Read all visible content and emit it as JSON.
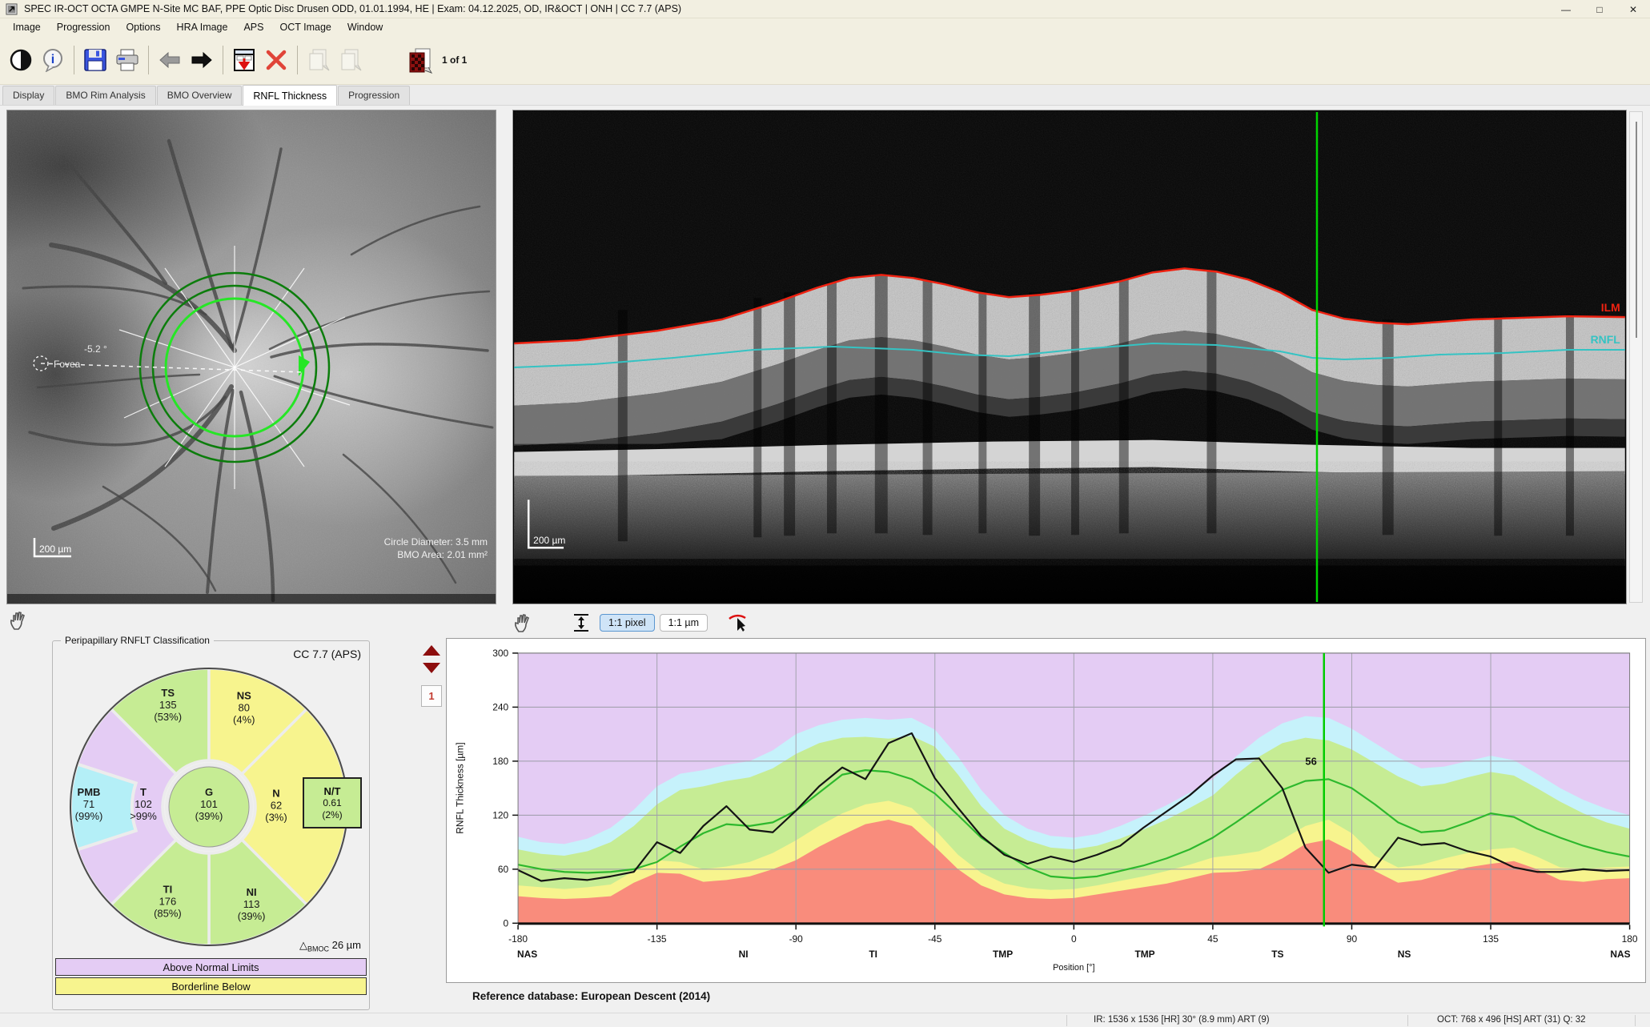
{
  "window": {
    "title": "SPEC IR-OCT OCTA GMPE N-Site MC BAF, PPE Optic Disc Drusen ODD, 01.01.1994, HE  |  Exam: 04.12.2025, OD, IR&OCT  |  ONH  |  CC 7.7 (APS)",
    "controls": {
      "minimize": "—",
      "maximize": "□",
      "close": "✕"
    }
  },
  "menu": {
    "items": [
      "Image",
      "Progression",
      "Options",
      "HRA Image",
      "APS",
      "OCT Image",
      "Window"
    ]
  },
  "toolbar": {
    "page_indicator": "1 of 1"
  },
  "tabs": [
    {
      "label": "Display"
    },
    {
      "label": "BMO Rim Analysis"
    },
    {
      "label": "BMO Overview"
    },
    {
      "label": "RNFL Thickness"
    },
    {
      "label": "Progression"
    }
  ],
  "fundus": {
    "fovea_label": "Fovea",
    "angle_label": "-5.2 °",
    "scale_label": "200 µm",
    "circle_diameter": "Circle Diameter: 3.5 mm",
    "bmo_area": "BMO Area: 2.01 mm²"
  },
  "oct": {
    "ilm_label": "ILM",
    "rnfl_label": "RNFL",
    "scale_label": "200 µm",
    "controls": {
      "pixel": "1:1 pixel",
      "micron": "1:1 µm"
    }
  },
  "page_nav": {
    "page": "1"
  },
  "classification": {
    "title": "Peripapillary RNFLT Classification",
    "badge": "CC 7.7 (APS)",
    "center": {
      "id": "G",
      "value": "101",
      "pct": "(39%)",
      "status": "normal"
    },
    "sectors": [
      {
        "id": "TS",
        "value": "135",
        "pct": "(53%)",
        "status": "normal",
        "start": 315,
        "end": 360,
        "label_ang": 337.5,
        "label_r": 134
      },
      {
        "id": "NS",
        "value": "80",
        "pct": "(4%)",
        "status": "borderline",
        "start": 0,
        "end": 45,
        "label_ang": 20,
        "label_r": 128
      },
      {
        "id": "N",
        "value": "62",
        "pct": "(3%)",
        "status": "borderline",
        "start": 45,
        "end": 135,
        "label_ang": 91,
        "label_r": 84
      },
      {
        "id": "NI",
        "value": "113",
        "pct": "(39%)",
        "status": "normal",
        "start": 135,
        "end": 180,
        "label_ang": 157,
        "label_r": 136
      },
      {
        "id": "TI",
        "value": "176",
        "pct": "(85%)",
        "status": "normal",
        "start": 180,
        "end": 225,
        "label_ang": 203,
        "label_r": 132
      },
      {
        "id": "T",
        "value": "102",
        "pct": ">99%",
        "status": "above",
        "start": 225,
        "end": 315,
        "label_ang": 270,
        "label_r": 82
      }
    ],
    "pmb": {
      "id": "PMB",
      "value": "71",
      "pct": "(99%)",
      "status": "pmb",
      "start": 252,
      "end": 288,
      "inner_r": 96,
      "label_ang": 270,
      "label_r": 150
    },
    "nt": {
      "id": "N/T",
      "value": "0.61",
      "pct": "(2%)",
      "status": "normal"
    },
    "bmoc": {
      "delta": "△",
      "label": "BMOC",
      "value": "26 µm"
    },
    "legend": [
      {
        "label": "Above Normal Limits",
        "status": "above"
      },
      {
        "label": "Borderline Below",
        "status": "borderline"
      }
    ]
  },
  "chart_data": {
    "type": "line",
    "title": "",
    "xlabel": "Position [°]",
    "ylabel": "RNFL Thickness [µm]",
    "xlim": [
      -180,
      180
    ],
    "ylim": [
      0,
      300
    ],
    "x_ticks": [
      -180,
      -135,
      -90,
      -45,
      0,
      45,
      90,
      135,
      180
    ],
    "y_ticks": [
      0,
      60,
      120,
      180,
      240,
      300
    ],
    "grid": true,
    "x_start": -180,
    "x_step": 7.5,
    "series": [
      {
        "name": "Measured RNFL thickness",
        "color": "#141414",
        "values": [
          59,
          47,
          50,
          48,
          52,
          57,
          90,
          78,
          108,
          130,
          104,
          101,
          125,
          152,
          173,
          160,
          200,
          211,
          161,
          128,
          97,
          76,
          66,
          74,
          68,
          76,
          86,
          106,
          124,
          142,
          164,
          182,
          183,
          150,
          84,
          56,
          65,
          62,
          95,
          87,
          89,
          80,
          74,
          62,
          57,
          57,
          60,
          58,
          59
        ]
      },
      {
        "name": "Mean of reference database",
        "color": "#2db82d",
        "values": [
          65,
          60,
          57,
          56,
          57,
          60,
          68,
          85,
          100,
          110,
          108,
          112,
          125,
          145,
          165,
          170,
          168,
          160,
          144,
          120,
          95,
          78,
          62,
          52,
          50,
          52,
          58,
          64,
          72,
          82,
          95,
          112,
          130,
          148,
          158,
          160,
          150,
          132,
          112,
          101,
          103,
          112,
          122,
          118,
          105,
          95,
          86,
          79,
          74
        ]
      }
    ],
    "bands": {
      "p1": [
        30,
        28,
        27,
        28,
        30,
        45,
        56,
        55,
        46,
        48,
        52,
        60,
        70,
        85,
        98,
        110,
        115,
        108,
        85,
        60,
        42,
        32,
        28,
        27,
        28,
        32,
        36,
        40,
        44,
        50,
        56,
        57,
        60,
        72,
        88,
        93,
        80,
        58,
        45,
        48,
        55,
        62,
        66,
        69,
        60,
        48,
        46,
        49,
        50
      ],
      "p5": [
        42,
        40,
        38,
        40,
        43,
        58,
        70,
        68,
        60,
        63,
        68,
        78,
        92,
        108,
        122,
        132,
        136,
        128,
        104,
        76,
        56,
        44,
        39,
        37,
        38,
        42,
        47,
        52,
        58,
        65,
        73,
        76,
        80,
        93,
        108,
        115,
        100,
        75,
        62,
        65,
        72,
        78,
        82,
        84,
        74,
        62,
        60,
        62,
        63
      ],
      "p95": [
        82,
        77,
        75,
        80,
        90,
        108,
        132,
        148,
        152,
        158,
        162,
        172,
        188,
        200,
        206,
        207,
        205,
        208,
        196,
        165,
        130,
        105,
        92,
        84,
        82,
        86,
        94,
        104,
        115,
        128,
        142,
        165,
        185,
        200,
        206,
        203,
        193,
        178,
        163,
        152,
        155,
        162,
        168,
        164,
        150,
        135,
        122,
        112,
        105
      ],
      "p99": [
        96,
        90,
        88,
        94,
        106,
        126,
        152,
        166,
        170,
        176,
        180,
        192,
        210,
        220,
        226,
        228,
        226,
        228,
        215,
        185,
        148,
        120,
        105,
        97,
        95,
        99,
        108,
        119,
        131,
        145,
        160,
        185,
        206,
        222,
        230,
        228,
        216,
        200,
        184,
        172,
        174,
        180,
        186,
        181,
        166,
        150,
        137,
        127,
        120
      ]
    },
    "cursor": {
      "position_deg": 81,
      "value_label": "56"
    },
    "sector_labels": [
      {
        "label": "NAS",
        "deg": -177
      },
      {
        "label": "NI",
        "deg": -107
      },
      {
        "label": "TI",
        "deg": -65
      },
      {
        "label": "TMP",
        "deg": -23
      },
      {
        "label": "TMP",
        "deg": 23
      },
      {
        "label": "TS",
        "deg": 66
      },
      {
        "label": "NS",
        "deg": 107
      },
      {
        "label": "NAS",
        "deg": 177
      }
    ],
    "legend_position": "none"
  },
  "reference_note": "Reference database: European Descent (2014)",
  "status_bar": {
    "ir": "IR: 1536 x 1536 [HR] 30° (8.9 mm) ART (9)",
    "oct": "OCT: 768 x 496 [HS] ART (31) Q: 32"
  },
  "colors": {
    "normal": "#c6ec94",
    "borderline": "#f7f48e",
    "above": "#e4ccf4",
    "pmb": "#b4eff7",
    "below": "#f98c7c",
    "high": "#c6f2fb",
    "mean_line": "#2db82d",
    "cursor_green": "#00cc00",
    "ilm_red": "#ee2211",
    "rnfl_teal": "#35c3c3"
  }
}
